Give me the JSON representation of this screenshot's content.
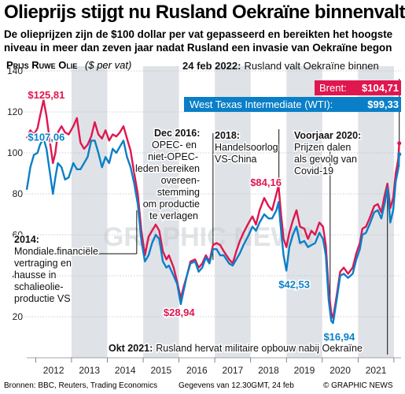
{
  "header": {
    "title": "Olieprijs stijgt nu Rusland Oekraïne binnenvalt",
    "subtitle_line1": "De olieprijzen zijn de $100 dollar per vat gepasseerd en bereikten het hoogste",
    "subtitle_line2": "niveau in meer dan zeven jaar nadat Rusland een invasie van Oekraïne begon"
  },
  "footer": {
    "sources": "Bronnen: BBC, Reuters, Trading Economics",
    "generated": "Gegevens van 12.30GMT, 24 feb",
    "brand": "© GRAPHIC NEWS"
  },
  "watermark": "GRAPHIC NEWS",
  "colors": {
    "brent": "#e0164f",
    "wti": "#0a7fc7",
    "band": "#dfe3e8",
    "grid": "#b8bcc0"
  },
  "chart_data": {
    "type": "line",
    "title": "Prijs Ruwe Olie",
    "ylabel_unit": "($ per vat)",
    "ylim": [
      0,
      140
    ],
    "yticks": [
      20,
      40,
      60,
      80,
      100,
      120,
      140
    ],
    "xlim": [
      2011.75,
      2022.2
    ],
    "year_labels": [
      "2012",
      "2013",
      "2014",
      "2015",
      "2016",
      "2017",
      "2018",
      "2019",
      "2020",
      "2021"
    ],
    "legend": {
      "date_label": "24 feb 2022:",
      "date_text": "Rusland valt Oekraïne binnen",
      "brent_label": "Brent:",
      "brent_value": "$104,71",
      "wti_label": "West Texas Intermediate (WTI):",
      "wti_value": "$99,33"
    },
    "series": [
      {
        "name": "Brent",
        "color": "#e0164f",
        "points": [
          [
            2011.75,
            107
          ],
          [
            2011.85,
            111
          ],
          [
            2011.95,
            109
          ],
          [
            2012.05,
            112
          ],
          [
            2012.12,
            118
          ],
          [
            2012.22,
            125.81
          ],
          [
            2012.3,
            118
          ],
          [
            2012.4,
            105
          ],
          [
            2012.48,
            95
          ],
          [
            2012.55,
            100
          ],
          [
            2012.62,
            110
          ],
          [
            2012.72,
            113
          ],
          [
            2012.82,
            110
          ],
          [
            2012.92,
            109
          ],
          [
            2013.05,
            113
          ],
          [
            2013.15,
            117
          ],
          [
            2013.25,
            105
          ],
          [
            2013.35,
            102
          ],
          [
            2013.45,
            104
          ],
          [
            2013.55,
            108
          ],
          [
            2013.65,
            115
          ],
          [
            2013.75,
            109
          ],
          [
            2013.85,
            107
          ],
          [
            2013.95,
            111
          ],
          [
            2014.05,
            106
          ],
          [
            2014.15,
            109
          ],
          [
            2014.25,
            108
          ],
          [
            2014.35,
            110
          ],
          [
            2014.45,
            113
          ],
          [
            2014.55,
            107
          ],
          [
            2014.65,
            101
          ],
          [
            2014.75,
            90
          ],
          [
            2014.85,
            80
          ],
          [
            2014.95,
            62
          ],
          [
            2015.05,
            50
          ],
          [
            2015.15,
            59
          ],
          [
            2015.25,
            62
          ],
          [
            2015.35,
            65
          ],
          [
            2015.45,
            62
          ],
          [
            2015.55,
            52
          ],
          [
            2015.65,
            48
          ],
          [
            2015.72,
            50
          ],
          [
            2015.85,
            44
          ],
          [
            2015.95,
            37
          ],
          [
            2016.05,
            28.94
          ],
          [
            2016.12,
            34
          ],
          [
            2016.22,
            40
          ],
          [
            2016.32,
            47
          ],
          [
            2016.45,
            48
          ],
          [
            2016.55,
            44
          ],
          [
            2016.65,
            46
          ],
          [
            2016.75,
            50
          ],
          [
            2016.85,
            47
          ],
          [
            2016.95,
            55
          ],
          [
            2017.05,
            56
          ],
          [
            2017.15,
            55
          ],
          [
            2017.25,
            52
          ],
          [
            2017.4,
            48
          ],
          [
            2017.5,
            46
          ],
          [
            2017.6,
            52
          ],
          [
            2017.7,
            57
          ],
          [
            2017.8,
            61
          ],
          [
            2017.95,
            66
          ],
          [
            2018.05,
            69
          ],
          [
            2018.15,
            65
          ],
          [
            2018.25,
            72
          ],
          [
            2018.38,
            78
          ],
          [
            2018.5,
            74
          ],
          [
            2018.6,
            72
          ],
          [
            2018.72,
            80
          ],
          [
            2018.78,
            84.16
          ],
          [
            2018.85,
            70
          ],
          [
            2018.92,
            58
          ],
          [
            2019.0,
            54
          ],
          [
            2019.08,
            61
          ],
          [
            2019.18,
            67
          ],
          [
            2019.28,
            72
          ],
          [
            2019.38,
            64
          ],
          [
            2019.5,
            63
          ],
          [
            2019.6,
            58
          ],
          [
            2019.7,
            62
          ],
          [
            2019.8,
            60
          ],
          [
            2019.92,
            66
          ],
          [
            2020.02,
            64
          ],
          [
            2020.1,
            55
          ],
          [
            2020.18,
            33
          ],
          [
            2020.25,
            22
          ],
          [
            2020.3,
            19.33
          ],
          [
            2020.4,
            30
          ],
          [
            2020.5,
            42
          ],
          [
            2020.6,
            44
          ],
          [
            2020.72,
            41
          ],
          [
            2020.85,
            44
          ],
          [
            2020.95,
            51
          ],
          [
            2021.05,
            56
          ],
          [
            2021.12,
            63
          ],
          [
            2021.22,
            64
          ],
          [
            2021.32,
            68
          ],
          [
            2021.45,
            74
          ],
          [
            2021.55,
            75
          ],
          [
            2021.65,
            71
          ],
          [
            2021.75,
            80
          ],
          [
            2021.82,
            85
          ],
          [
            2021.9,
            73
          ],
          [
            2021.98,
            78
          ],
          [
            2022.05,
            90
          ],
          [
            2022.12,
            97
          ],
          [
            2022.15,
            104.71
          ]
        ]
      },
      {
        "name": "West Texas Intermediate (WTI)",
        "color": "#0a7fc7",
        "points": [
          [
            2011.75,
            82
          ],
          [
            2011.85,
            93
          ],
          [
            2011.95,
            99
          ],
          [
            2012.05,
            100
          ],
          [
            2012.12,
            104
          ],
          [
            2012.22,
            107.06
          ],
          [
            2012.3,
            102
          ],
          [
            2012.4,
            90
          ],
          [
            2012.48,
            80
          ],
          [
            2012.55,
            88
          ],
          [
            2012.62,
            95
          ],
          [
            2012.72,
            93
          ],
          [
            2012.82,
            87
          ],
          [
            2012.92,
            88
          ],
          [
            2013.05,
            95
          ],
          [
            2013.15,
            92
          ],
          [
            2013.25,
            92
          ],
          [
            2013.35,
            95
          ],
          [
            2013.45,
            98
          ],
          [
            2013.55,
            106
          ],
          [
            2013.65,
            106
          ],
          [
            2013.75,
            100
          ],
          [
            2013.85,
            93
          ],
          [
            2013.95,
            98
          ],
          [
            2014.05,
            95
          ],
          [
            2014.15,
            102
          ],
          [
            2014.25,
            100
          ],
          [
            2014.35,
            103
          ],
          [
            2014.45,
            106
          ],
          [
            2014.55,
            98
          ],
          [
            2014.65,
            93
          ],
          [
            2014.75,
            85
          ],
          [
            2014.85,
            75
          ],
          [
            2014.95,
            57
          ],
          [
            2015.05,
            47
          ],
          [
            2015.15,
            50
          ],
          [
            2015.25,
            56
          ],
          [
            2015.35,
            60
          ],
          [
            2015.45,
            58
          ],
          [
            2015.55,
            47
          ],
          [
            2015.65,
            44
          ],
          [
            2015.72,
            45
          ],
          [
            2015.85,
            40
          ],
          [
            2015.95,
            36
          ],
          [
            2016.05,
            26.2
          ],
          [
            2016.12,
            32
          ],
          [
            2016.22,
            40
          ],
          [
            2016.32,
            46
          ],
          [
            2016.45,
            47
          ],
          [
            2016.55,
            42
          ],
          [
            2016.65,
            44
          ],
          [
            2016.75,
            49
          ],
          [
            2016.85,
            46
          ],
          [
            2016.95,
            53
          ],
          [
            2017.05,
            53
          ],
          [
            2017.15,
            50
          ],
          [
            2017.25,
            50
          ],
          [
            2017.4,
            46
          ],
          [
            2017.5,
            45
          ],
          [
            2017.6,
            48
          ],
          [
            2017.7,
            51
          ],
          [
            2017.8,
            55
          ],
          [
            2017.95,
            60
          ],
          [
            2018.05,
            64
          ],
          [
            2018.15,
            62
          ],
          [
            2018.25,
            66
          ],
          [
            2018.38,
            70
          ],
          [
            2018.5,
            68
          ],
          [
            2018.6,
            68
          ],
          [
            2018.72,
            72
          ],
          [
            2018.78,
            76
          ],
          [
            2018.85,
            62
          ],
          [
            2018.92,
            50
          ],
          [
            2019.0,
            42.53
          ],
          [
            2019.08,
            54
          ],
          [
            2019.18,
            60
          ],
          [
            2019.28,
            64
          ],
          [
            2019.38,
            56
          ],
          [
            2019.5,
            57
          ],
          [
            2019.6,
            54
          ],
          [
            2019.7,
            55
          ],
          [
            2019.8,
            56
          ],
          [
            2019.92,
            61
          ],
          [
            2020.02,
            58
          ],
          [
            2020.1,
            50
          ],
          [
            2020.18,
            28
          ],
          [
            2020.25,
            18
          ],
          [
            2020.3,
            16.94
          ],
          [
            2020.4,
            28
          ],
          [
            2020.5,
            40
          ],
          [
            2020.6,
            41
          ],
          [
            2020.72,
            39
          ],
          [
            2020.85,
            41
          ],
          [
            2020.95,
            48
          ],
          [
            2021.05,
            53
          ],
          [
            2021.12,
            60
          ],
          [
            2021.22,
            61
          ],
          [
            2021.32,
            65
          ],
          [
            2021.45,
            71
          ],
          [
            2021.55,
            72
          ],
          [
            2021.65,
            68
          ],
          [
            2021.75,
            76
          ],
          [
            2021.82,
            83
          ],
          [
            2021.9,
            66
          ],
          [
            2021.98,
            72
          ],
          [
            2022.05,
            86
          ],
          [
            2022.12,
            92
          ],
          [
            2022.15,
            99.33
          ]
        ]
      }
    ],
    "value_labels": [
      {
        "text": "$125,81",
        "series": "Brent"
      },
      {
        "text": "$107,06",
        "series": "WTI"
      },
      {
        "text": "$84,16",
        "series": "Brent"
      },
      {
        "text": "$28,94",
        "series": "Brent"
      },
      {
        "text": "$42,53",
        "series": "WTI"
      },
      {
        "text": "$16,94",
        "series": "WTI"
      }
    ],
    "annotations": [
      {
        "lines": [
          "2014:",
          "Mondiale financiële",
          "vertraging en",
          "hausse in",
          "schalieolie-",
          "productie VS"
        ]
      },
      {
        "lines": [
          "Dec 2016:",
          "OPEC- en",
          "niet-OPEC-",
          "leden bereiken",
          "overeen-",
          "stemming",
          "om productie",
          "te verlagen"
        ]
      },
      {
        "lines": [
          "2018:",
          "Handelsoorlog",
          "VS-China"
        ]
      },
      {
        "lines": [
          "Voorjaar 2020:",
          "Prijzen dalen",
          "als gevolg van",
          "Covid-19"
        ]
      },
      {
        "lines": [
          "Okt 2021:",
          "Rusland hervat militaire opbouw nabij Oekraïne"
        ]
      }
    ]
  }
}
